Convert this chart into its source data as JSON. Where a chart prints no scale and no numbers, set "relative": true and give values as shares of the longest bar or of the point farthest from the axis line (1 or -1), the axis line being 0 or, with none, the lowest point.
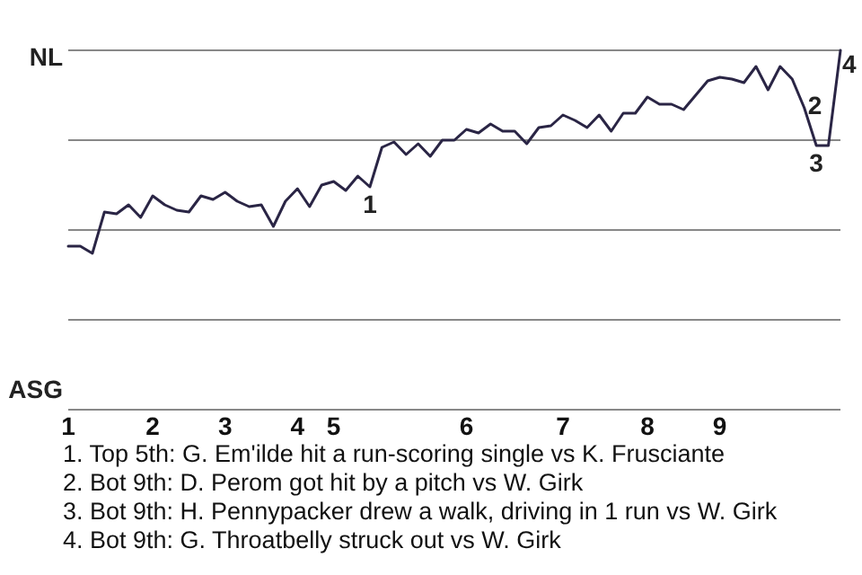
{
  "chart_data": {
    "type": "line",
    "relative": true,
    "categories": [
      "1",
      null,
      null,
      null,
      null,
      null,
      null,
      "2",
      null,
      null,
      null,
      null,
      null,
      "3",
      null,
      null,
      null,
      null,
      null,
      "4",
      null,
      null,
      "5",
      null,
      null,
      null,
      null,
      null,
      null,
      null,
      null,
      null,
      null,
      "6",
      null,
      null,
      null,
      null,
      null,
      null,
      null,
      "7",
      null,
      null,
      null,
      null,
      null,
      null,
      "8",
      null,
      null,
      null,
      null,
      null,
      "9",
      null,
      null,
      null,
      null,
      null,
      null,
      null,
      null,
      null,
      null
    ],
    "series": [
      {
        "color": "#2a2545",
        "values": [
          0.455,
          0.455,
          0.435,
          0.55,
          0.545,
          0.57,
          0.535,
          0.595,
          0.57,
          0.555,
          0.55,
          0.595,
          0.585,
          0.605,
          0.58,
          0.565,
          0.57,
          0.51,
          0.58,
          0.615,
          0.565,
          0.625,
          0.635,
          0.61,
          0.65,
          0.62,
          0.73,
          0.745,
          0.71,
          0.74,
          0.705,
          0.75,
          0.75,
          0.78,
          0.77,
          0.795,
          0.775,
          0.775,
          0.74,
          0.785,
          0.79,
          0.82,
          0.805,
          0.785,
          0.82,
          0.775,
          0.825,
          0.825,
          0.87,
          0.85,
          0.85,
          0.835,
          0.875,
          0.915,
          0.925,
          0.92,
          0.91,
          0.955,
          0.89,
          0.955,
          0.92,
          0.84,
          0.735,
          0.735,
          1
        ]
      }
    ],
    "marker": "none",
    "line_style": "solid",
    "grid": "y",
    "annotations": [
      "NL",
      "ASG",
      {
        "text": "1",
        "y": 0.62
      },
      {
        "text": "2",
        "y": 0.84
      },
      {
        "text": "3",
        "y": 0.735
      },
      {
        "text": "4",
        "y": 1
      },
      "1. Top 5th: G. Em'ilde hit a run-scoring single vs K. Frusciante",
      "2. Bot 9th: D. Perom got hit by a pitch vs W. Girk",
      "3. Bot 9th: H. Pennypacker drew a walk, driving in 1 run vs W. Girk",
      "4. Bot 9th: G. Throatbelly struck out vs W. Girk"
    ]
  }
}
